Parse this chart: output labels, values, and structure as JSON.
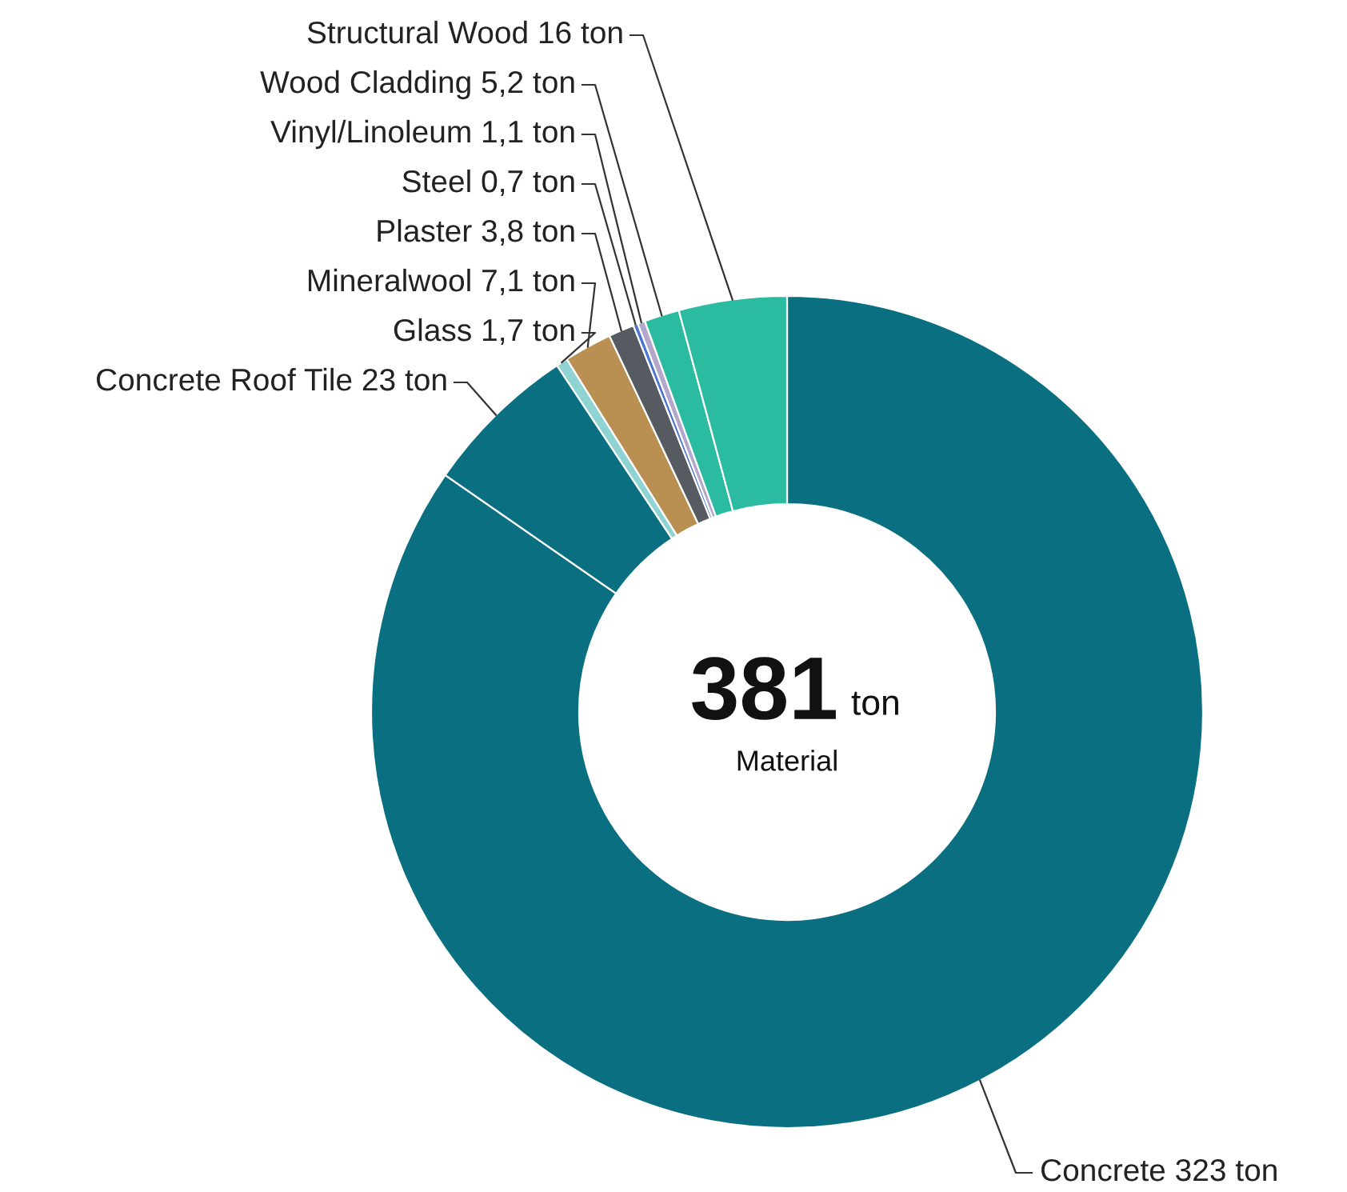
{
  "chart_data": {
    "type": "donut",
    "categories": [
      "Concrete",
      "Concrete Roof Tile",
      "Glass",
      "Mineralwool",
      "Plaster",
      "Steel",
      "Vinyl/Linoleum",
      "Wood Cladding",
      "Structural Wood"
    ],
    "values": [
      323,
      23,
      1.7,
      7.1,
      3.8,
      0.7,
      1.1,
      5.2,
      16
    ],
    "value_labels": [
      "323 ton",
      "23 ton",
      "1,7 ton",
      "7,1 ton",
      "3,8 ton",
      "0,7 ton",
      "1,1 ton",
      "5,2 ton",
      "16 ton"
    ],
    "colors": [
      "#0b6f82",
      "#0b6f82",
      "#8fd3d3",
      "#b98f52",
      "#555b60",
      "#4a74d0",
      "#b3a8cc",
      "#2bbba0",
      "#2bbba0"
    ],
    "annotations": [
      "381",
      "ton",
      "Material"
    ],
    "legend": false
  }
}
